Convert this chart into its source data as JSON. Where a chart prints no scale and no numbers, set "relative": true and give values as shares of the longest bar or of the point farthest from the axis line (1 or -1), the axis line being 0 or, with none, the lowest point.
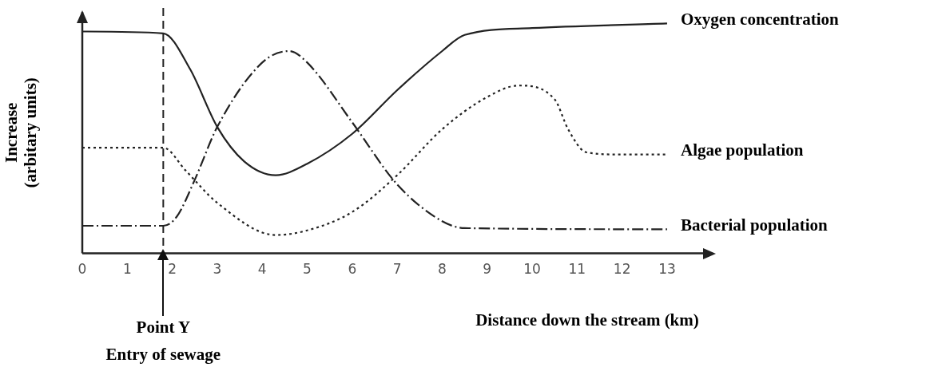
{
  "chart_data": {
    "type": "line",
    "relative": true,
    "xlabel": "Distance down the stream (km)",
    "ylabel": "Increase\n(arbitary units)",
    "xlim": [
      0,
      13.8
    ],
    "xticks": [
      0,
      1,
      2,
      3,
      4,
      5,
      6,
      7,
      8,
      9,
      10,
      11,
      12,
      13
    ],
    "legend": false,
    "grid": false,
    "marker": "none",
    "series": [
      {
        "name": "Oxygen concentration",
        "color": "#222222",
        "line_style": "solid",
        "x": [
          0,
          1.8,
          2.4,
          3,
          3.6,
          4.3,
          5,
          6,
          7,
          8,
          8.5,
          10,
          13
        ],
        "values": [
          0.965,
          0.957,
          0.8,
          0.55,
          0.4,
          0.34,
          0.39,
          0.52,
          0.71,
          0.88,
          0.95,
          0.98,
          1
        ]
      },
      {
        "name": "Algae population",
        "color": "#222222",
        "line_style": "dotted",
        "x": [
          0,
          1.8,
          2.3,
          3,
          4.3,
          5,
          6,
          7,
          8,
          9,
          9.7,
          10.5,
          10.8,
          11.2,
          12,
          13
        ],
        "values": [
          0.46,
          0.46,
          0.36,
          0.22,
          0.08,
          0.1,
          0.18,
          0.34,
          0.54,
          0.68,
          0.73,
          0.67,
          0.54,
          0.44,
          0.43,
          0.43
        ]
      },
      {
        "name": "Bacterial population",
        "color": "#222222",
        "line_style": "dashdot",
        "x": [
          0,
          1.8,
          2.1,
          2.5,
          3,
          4,
          4.6,
          5,
          6,
          7,
          8,
          8.5,
          13
        ],
        "values": [
          0.12,
          0.12,
          0.16,
          0.32,
          0.55,
          0.83,
          0.88,
          0.83,
          0.57,
          0.3,
          0.14,
          0.11,
          0.105
        ]
      }
    ],
    "ref_lines": [
      {
        "axis": "x",
        "value": 1.8,
        "line_style": "dashed",
        "color": "#222222"
      }
    ],
    "annotations": [
      {
        "text": "Point Y\nEntry of sewage",
        "x": 1.8
      }
    ]
  }
}
